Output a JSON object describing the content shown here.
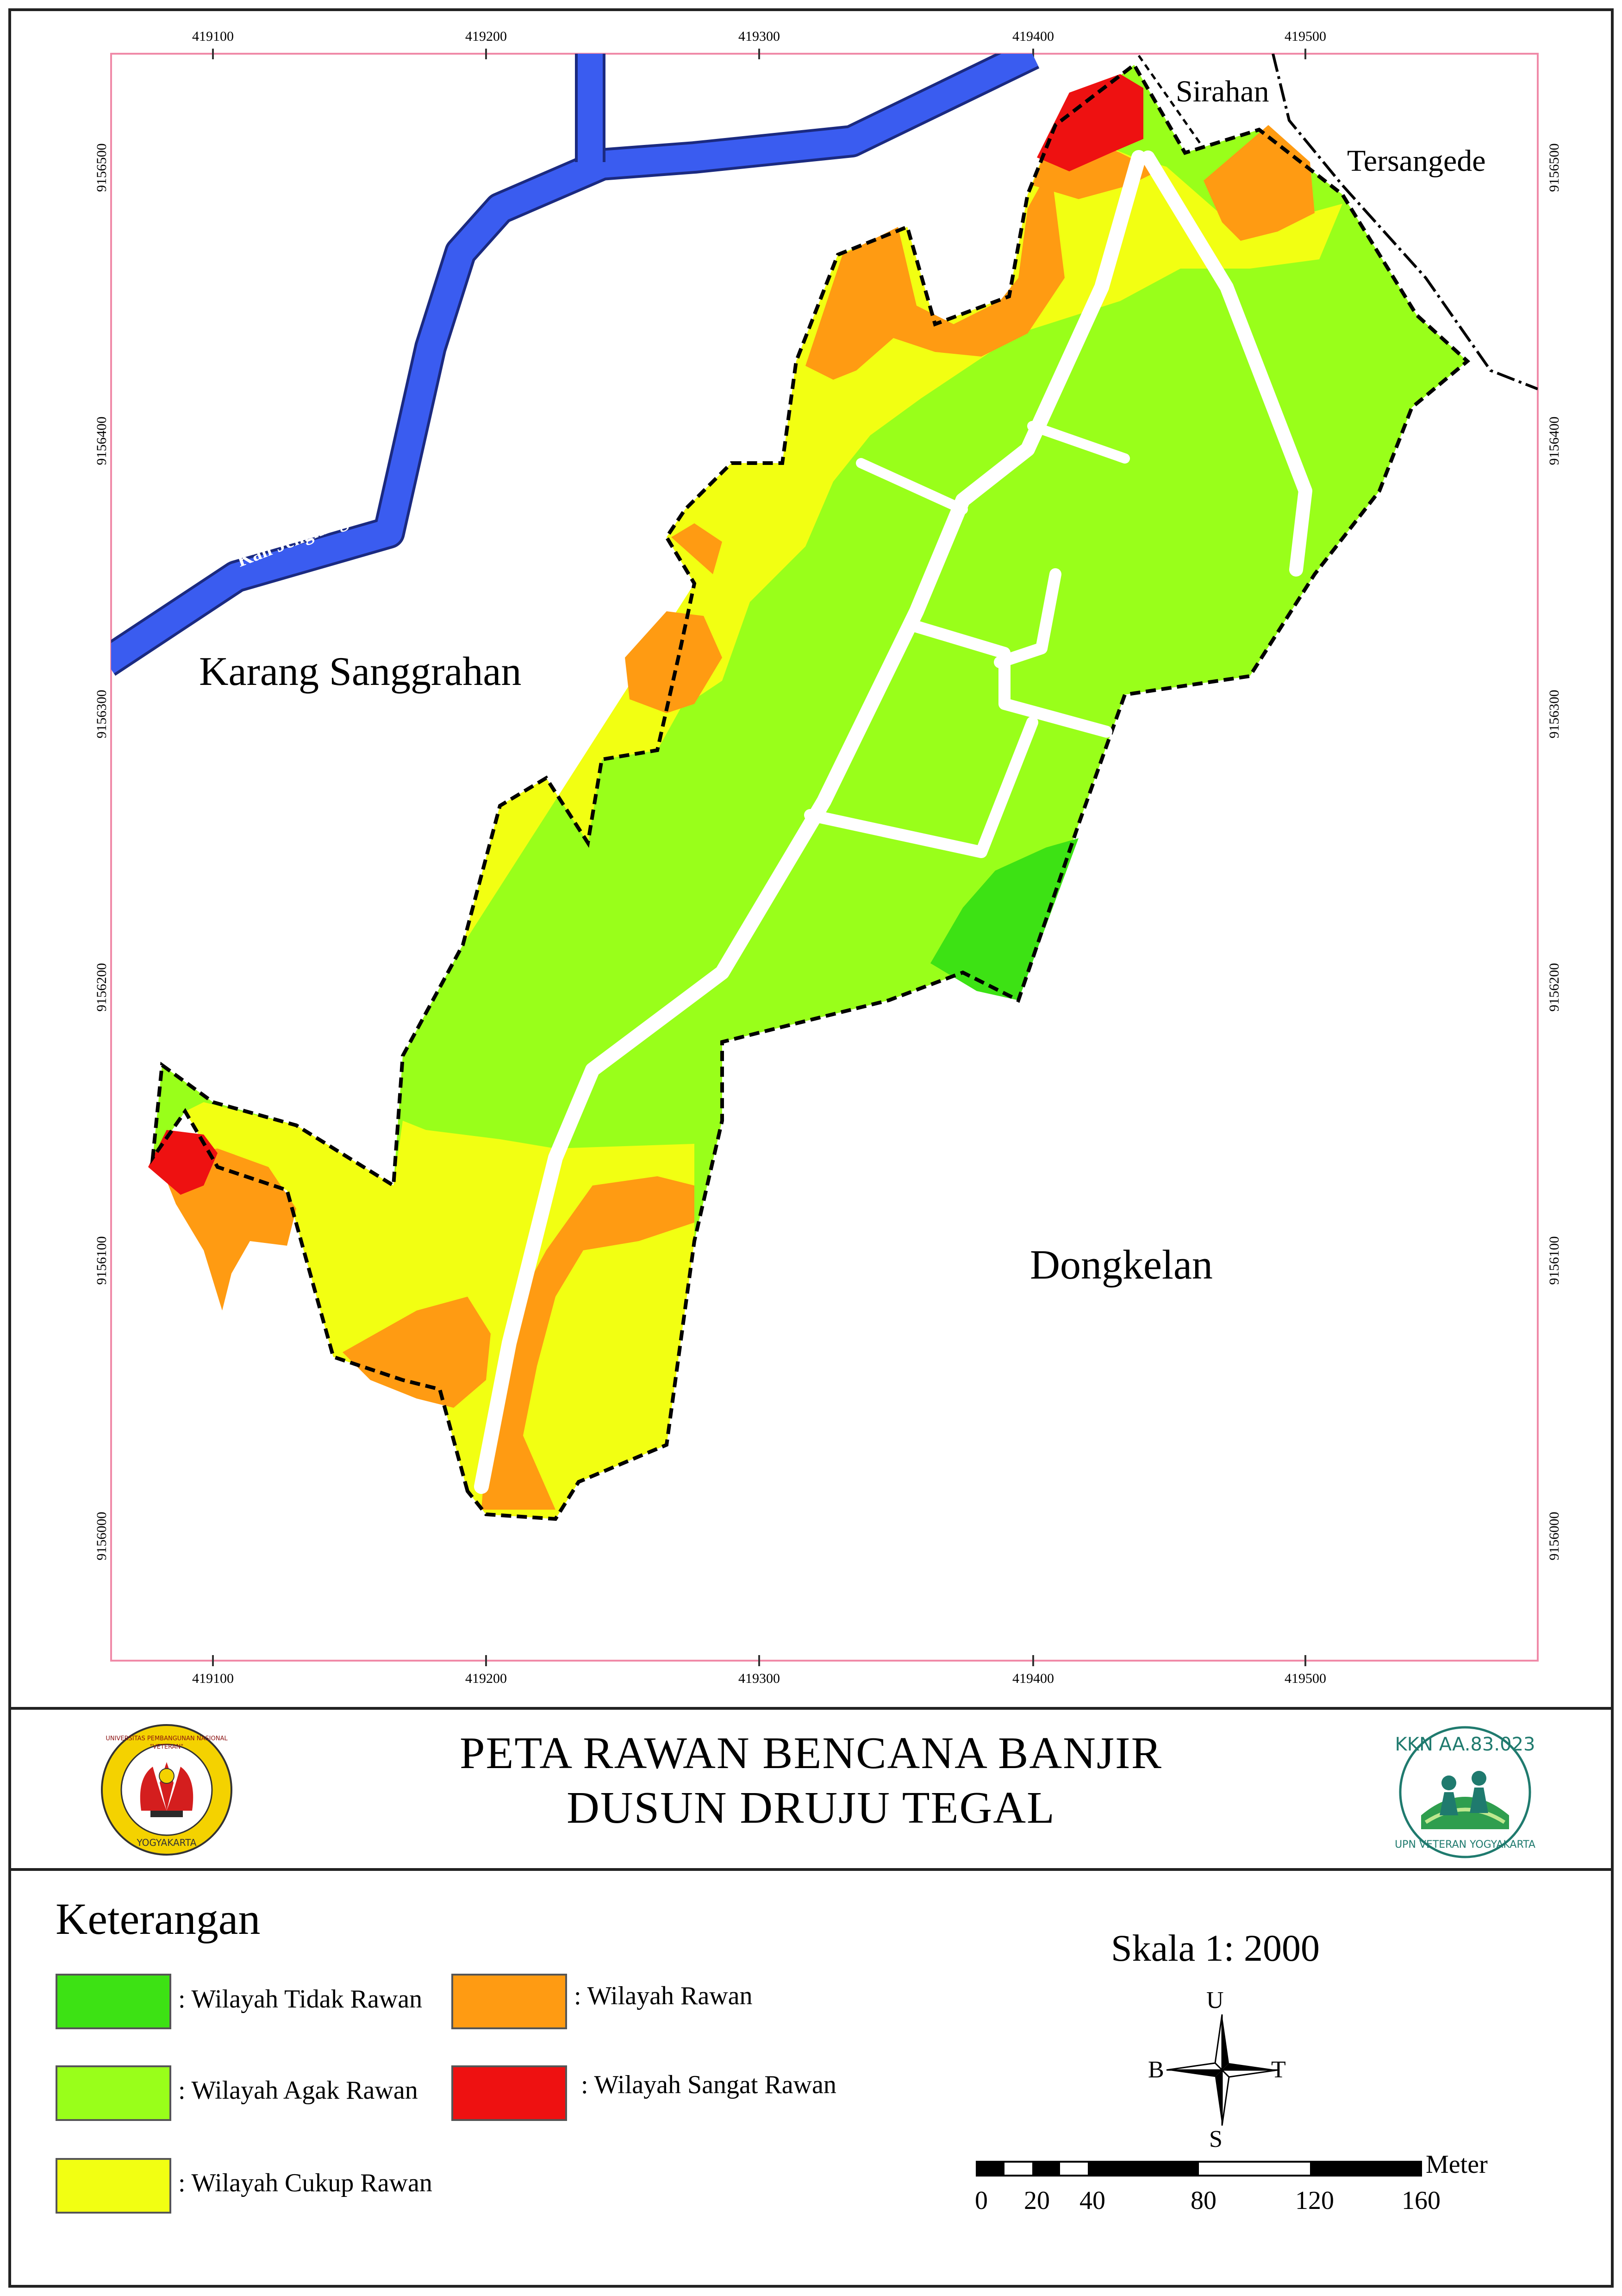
{
  "map": {
    "title_line1": "PETA RAWAN BENCANA BANJIR",
    "title_line2": "DUSUN DRUJU TEGAL",
    "region_labels": [
      "Karang Sanggrahan",
      "Dongkelan",
      "Sirahan",
      "Tersangede"
    ],
    "river_label": "Kali Jengking",
    "grid_x": [
      "419100",
      "419200",
      "419300",
      "419400",
      "419500"
    ],
    "grid_y": [
      "9156500",
      "9156400",
      "9156300",
      "9156200",
      "9156100",
      "9156000"
    ]
  },
  "colors": {
    "tidak_rawan": "#3de214",
    "agak_rawan": "#99ff1a",
    "cukup_rawan": "#f2ff12",
    "rawan": "#ff9b12",
    "sangat_rawan": "#ee1111",
    "river": "#3a5cf0",
    "road": "#ffffff",
    "frame": "#f08aa8"
  },
  "logos": {
    "left_text": [
      "UNIVERSITAS PEMBANGUNAN NASIONAL",
      "\"VETERAN\"",
      "YOGYAKARTA"
    ],
    "right_text": [
      "KKN AA.83.023",
      "UPN VETERAN YOGYAKARTA"
    ]
  },
  "legend": {
    "title": "Keterangan",
    "items": [
      {
        "label": ": Wilayah Tidak Rawan",
        "color_key": "tidak_rawan"
      },
      {
        "label": ": Wilayah Agak Rawan",
        "color_key": "agak_rawan"
      },
      {
        "label": ": Wilayah Cukup Rawan",
        "color_key": "cukup_rawan"
      },
      {
        "label": ": Wilayah Rawan",
        "color_key": "rawan"
      },
      {
        "label": ": Wilayah Sangat Rawan",
        "color_key": "sangat_rawan"
      }
    ]
  },
  "scale": {
    "label": "Skala 1: 2000",
    "unit": "Meter",
    "ticks": [
      "0",
      "20",
      "40",
      "80",
      "120",
      "160"
    ]
  },
  "compass": {
    "north": "U",
    "south": "S",
    "west": "B",
    "east": "T"
  }
}
